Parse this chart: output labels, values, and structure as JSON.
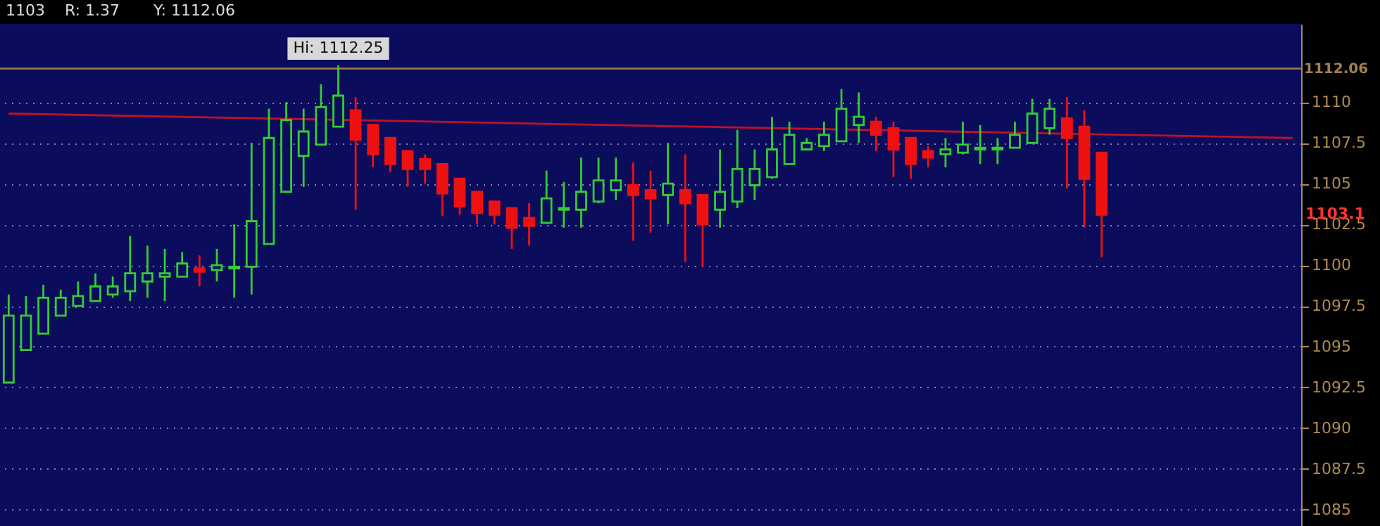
{
  "chart_data": {
    "type": "candlestick",
    "categories": [
      null,
      null,
      null,
      null,
      null,
      null,
      null,
      null,
      null,
      null,
      null,
      null,
      null,
      null,
      null,
      null,
      null,
      null,
      null,
      null,
      null,
      null,
      null,
      null,
      null,
      null,
      null,
      null,
      null,
      null,
      null,
      null,
      null,
      null,
      null,
      null,
      null,
      null,
      null,
      null,
      null,
      null,
      null,
      null,
      null,
      null,
      null,
      null,
      null,
      null,
      null,
      null,
      null,
      null,
      null,
      null,
      null,
      null,
      null,
      null,
      null,
      null,
      null,
      null,
      null,
      null,
      null,
      null,
      null,
      null,
      null,
      null,
      null,
      null,
      null
    ],
    "ohlc": [
      [
        1092.8,
        1098.2,
        1092.8,
        1096.9
      ],
      [
        1094.8,
        1098.1,
        1094.8,
        1096.9
      ],
      [
        1095.8,
        1098.8,
        1095.8,
        1098.0
      ],
      [
        1096.9,
        1098.5,
        1096.9,
        1098.0
      ],
      [
        1097.5,
        1099.0,
        1097.5,
        1098.1
      ],
      [
        1097.8,
        1099.5,
        1097.8,
        1098.7
      ],
      [
        1098.2,
        1099.3,
        1098.0,
        1098.7
      ],
      [
        1098.4,
        1101.8,
        1097.8,
        1099.5
      ],
      [
        1099.0,
        1101.2,
        1098.0,
        1099.5
      ],
      [
        1099.3,
        1101.0,
        1097.8,
        1099.5
      ],
      [
        1099.3,
        1100.8,
        1099.3,
        1100.1
      ],
      [
        1099.8,
        1100.6,
        1098.7,
        1099.6
      ],
      [
        1099.7,
        1101.0,
        1099.0,
        1100.0
      ],
      [
        1099.8,
        1102.5,
        1098.0,
        1099.9
      ],
      [
        1099.9,
        1107.5,
        1098.2,
        1102.7
      ],
      [
        1101.3,
        1109.6,
        1101.3,
        1107.8
      ],
      [
        1104.5,
        1110.0,
        1104.5,
        1108.9
      ],
      [
        1106.7,
        1109.6,
        1104.8,
        1108.2
      ],
      [
        1107.4,
        1111.1,
        1107.4,
        1109.7
      ],
      [
        1108.5,
        1112.25,
        1108.5,
        1110.4
      ],
      [
        1109.5,
        1110.3,
        1103.4,
        1107.7
      ],
      [
        1108.6,
        1108.6,
        1106.0,
        1106.8
      ],
      [
        1107.8,
        1107.8,
        1105.7,
        1106.2
      ],
      [
        1107.0,
        1107.0,
        1104.8,
        1105.9
      ],
      [
        1106.5,
        1106.8,
        1105.0,
        1105.9
      ],
      [
        1106.2,
        1106.2,
        1103.0,
        1104.4
      ],
      [
        1105.3,
        1105.3,
        1103.1,
        1103.6
      ],
      [
        1104.5,
        1104.5,
        1102.5,
        1103.2
      ],
      [
        1103.9,
        1103.9,
        1102.5,
        1103.1
      ],
      [
        1103.5,
        1103.5,
        1101.0,
        1102.3
      ],
      [
        1102.9,
        1103.8,
        1101.2,
        1102.4
      ],
      [
        1102.6,
        1105.8,
        1102.6,
        1104.1
      ],
      [
        1103.4,
        1105.1,
        1102.3,
        1103.5
      ],
      [
        1103.4,
        1106.6,
        1102.3,
        1104.5
      ],
      [
        1103.9,
        1106.6,
        1103.8,
        1105.2
      ],
      [
        1104.6,
        1106.6,
        1104.0,
        1105.2
      ],
      [
        1104.9,
        1106.3,
        1101.5,
        1104.3
      ],
      [
        1104.6,
        1105.8,
        1102.0,
        1104.1
      ],
      [
        1104.3,
        1107.5,
        1102.5,
        1105.0
      ],
      [
        1104.6,
        1106.8,
        1100.2,
        1103.8
      ],
      [
        1104.3,
        1104.3,
        1099.9,
        1102.5
      ],
      [
        1103.4,
        1107.1,
        1102.3,
        1104.5
      ],
      [
        1103.9,
        1108.3,
        1103.5,
        1105.9
      ],
      [
        1104.9,
        1107.1,
        1104.0,
        1105.9
      ],
      [
        1105.4,
        1109.1,
        1105.3,
        1107.1
      ],
      [
        1106.2,
        1108.8,
        1106.2,
        1108.0
      ],
      [
        1107.1,
        1107.8,
        1107.1,
        1107.5
      ],
      [
        1107.3,
        1108.8,
        1107.0,
        1108.0
      ],
      [
        1107.6,
        1110.8,
        1107.6,
        1109.6
      ],
      [
        1108.6,
        1110.6,
        1107.5,
        1109.1
      ],
      [
        1108.8,
        1109.1,
        1107.0,
        1108.0
      ],
      [
        1108.4,
        1108.8,
        1105.4,
        1107.1
      ],
      [
        1107.8,
        1107.8,
        1105.3,
        1106.2
      ],
      [
        1107.0,
        1107.3,
        1106.0,
        1106.6
      ],
      [
        1106.8,
        1107.8,
        1106.0,
        1107.1
      ],
      [
        1106.9,
        1108.8,
        1106.8,
        1107.4
      ],
      [
        1107.1,
        1108.6,
        1106.2,
        1107.2
      ],
      [
        1107.1,
        1107.8,
        1106.2,
        1107.2
      ],
      [
        1107.2,
        1108.8,
        1107.2,
        1108.0
      ],
      [
        1107.5,
        1110.2,
        1107.5,
        1109.3
      ],
      [
        1108.4,
        1110.2,
        1108.0,
        1109.6
      ],
      [
        1109.0,
        1110.3,
        1104.7,
        1107.8
      ],
      [
        1108.5,
        1109.5,
        1102.3,
        1105.3
      ],
      [
        1106.9,
        1106.9,
        1100.5,
        1103.1
      ],
      null,
      null,
      null,
      null,
      null,
      null,
      null,
      null,
      null,
      null,
      null
    ],
    "colors": [
      "#33cc33",
      "#33cc33",
      "#33cc33",
      "#33cc33",
      "#33cc33",
      "#33cc33",
      "#33cc33",
      "#33cc33",
      "#33cc33",
      "#33cc33",
      "#33cc33",
      "#ee1111",
      "#33cc33",
      "#33cc33",
      "#33cc33",
      "#33cc33",
      "#33cc33",
      "#33cc33",
      "#33cc33",
      "#33cc33",
      "#ee1111",
      "#ee1111",
      "#ee1111",
      "#ee1111",
      "#ee1111",
      "#ee1111",
      "#ee1111",
      "#ee1111",
      "#ee1111",
      "#ee1111",
      "#ee1111",
      "#33cc33",
      "#33cc33",
      "#33cc33",
      "#33cc33",
      "#33cc33",
      "#ee1111",
      "#ee1111",
      "#33cc33",
      "#ee1111",
      "#ee1111",
      "#33cc33",
      "#33cc33",
      "#33cc33",
      "#33cc33",
      "#33cc33",
      "#33cc33",
      "#33cc33",
      "#33cc33",
      "#33cc33",
      "#ee1111",
      "#ee1111",
      "#ee1111",
      "#ee1111",
      "#33cc33",
      "#33cc33",
      "#33cc33",
      "#33cc33",
      "#33cc33",
      "#33cc33",
      "#33cc33",
      "#ee1111",
      "#ee1111",
      "#ee1111",
      null,
      null,
      null,
      null,
      null,
      null,
      null,
      null,
      null,
      null,
      null
    ],
    "series": [
      {
        "type": "line",
        "color": "#c0102a",
        "values": [
          1109.3,
          null,
          null,
          null,
          null,
          null,
          null,
          null,
          null,
          null,
          null,
          null,
          null,
          null,
          null,
          null,
          null,
          null,
          null,
          null,
          null,
          null,
          null,
          null,
          null,
          null,
          null,
          null,
          null,
          null,
          null,
          null,
          null,
          null,
          null,
          null,
          null,
          null,
          null,
          null,
          null,
          null,
          null,
          null,
          null,
          null,
          null,
          null,
          null,
          null,
          null,
          null,
          null,
          null,
          null,
          null,
          null,
          null,
          null,
          null,
          null,
          null,
          null,
          null,
          null,
          null,
          null,
          null,
          null,
          null,
          null,
          null,
          null,
          null,
          1107.8
        ]
      }
    ],
    "ref_lines": [
      {
        "axis": "y",
        "value": 1112.06,
        "label": "1112.06",
        "color": "#a08050"
      }
    ],
    "annotations": [
      "1103",
      "R: 1.37",
      "Y: 1112.06",
      {
        "text": "Hi: 1112.25",
        "y": 1112.25
      },
      "1103.1"
    ],
    "ylim": [
      1084,
      1114.8
    ],
    "yticks": [
      1085,
      1087.5,
      1090,
      1092.5,
      1095,
      1097.5,
      1100,
      1102.5,
      1105,
      1107.5,
      1110
    ],
    "tick_labels": "y",
    "grid": "y"
  }
}
